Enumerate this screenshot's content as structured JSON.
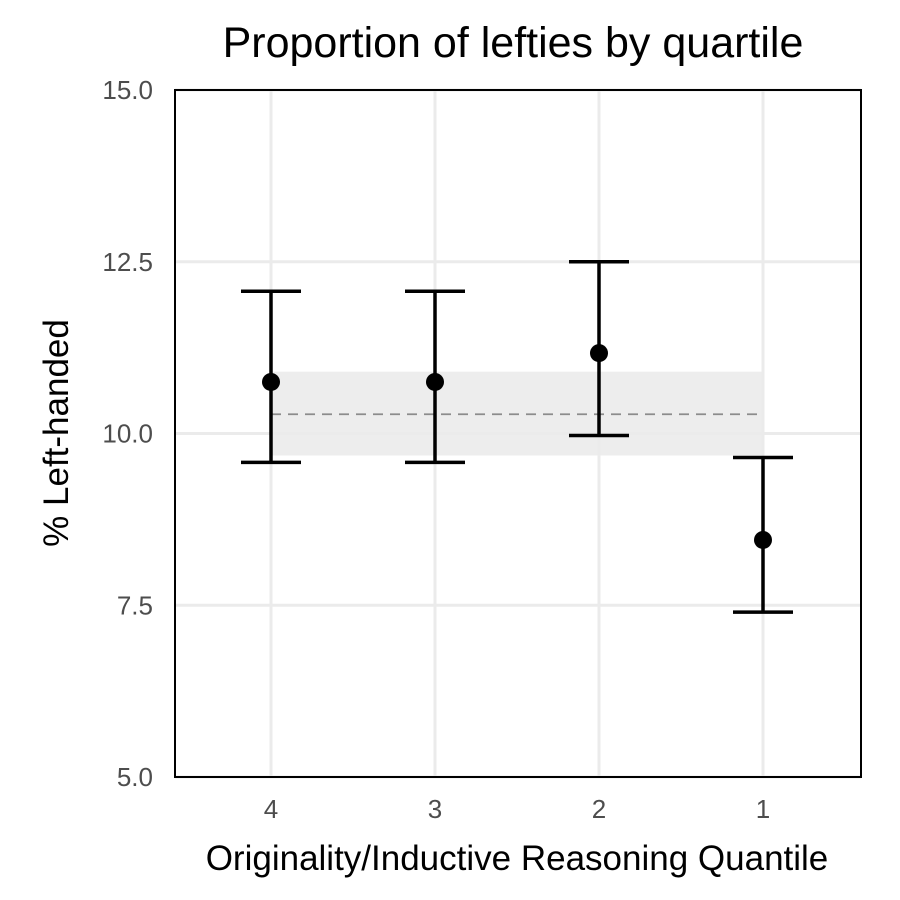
{
  "chart_data": {
    "type": "scatter",
    "title": "Proportion of lefties by quartile",
    "xlabel": "Originality/Inductive Reasoning Quantile",
    "ylabel": "% Left-handed",
    "categories": [
      "4",
      "3",
      "2",
      "1"
    ],
    "ylim": [
      5.0,
      15.0
    ],
    "yticks": [
      "5.0",
      "7.5",
      "10.0",
      "12.5",
      "15.0"
    ],
    "points": [
      {
        "x": "4",
        "y": 10.75,
        "lower": 9.58,
        "upper": 12.07
      },
      {
        "x": "3",
        "y": 10.75,
        "lower": 9.58,
        "upper": 12.07
      },
      {
        "x": "2",
        "y": 11.17,
        "lower": 9.97,
        "upper": 12.5
      },
      {
        "x": "1",
        "y": 8.45,
        "lower": 7.4,
        "upper": 9.65
      }
    ],
    "reference": {
      "y": 10.28,
      "band_lower": 9.68,
      "band_upper": 10.9
    },
    "grid": true,
    "legend": "none"
  },
  "colors": {
    "points": "#000000",
    "grid": "#ebebeb",
    "band": "#ebebeb",
    "reference_line": "#8c8c8c",
    "panel_border": "#000000"
  }
}
